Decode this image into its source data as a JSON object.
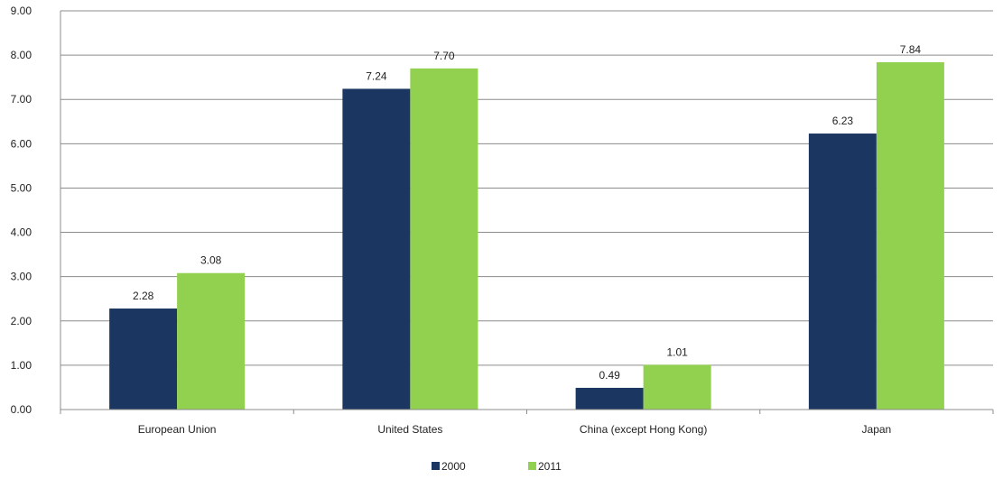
{
  "chart_data": {
    "type": "bar",
    "categories": [
      "European Union",
      "United States",
      "China (except Hong Kong)",
      "Japan"
    ],
    "series": [
      {
        "name": "2000",
        "values": [
          2.28,
          7.24,
          0.49,
          6.23
        ],
        "color": "#1b3660"
      },
      {
        "name": "2011",
        "values": [
          3.08,
          7.7,
          1.01,
          7.84
        ],
        "color": "#92d050"
      }
    ],
    "ylim": [
      0,
      9
    ],
    "yticks": [
      "0.00",
      "1.00",
      "2.00",
      "3.00",
      "4.00",
      "5.00",
      "6.00",
      "7.00",
      "8.00",
      "9.00"
    ],
    "data_labels": [
      [
        "2.28",
        "7.24",
        "0.49",
        "6.23"
      ],
      [
        "3.08",
        "7.70",
        "1.01",
        "7.84"
      ]
    ],
    "grid": true,
    "legend_position": "bottom",
    "gridline_color": "#8c8c8c"
  }
}
